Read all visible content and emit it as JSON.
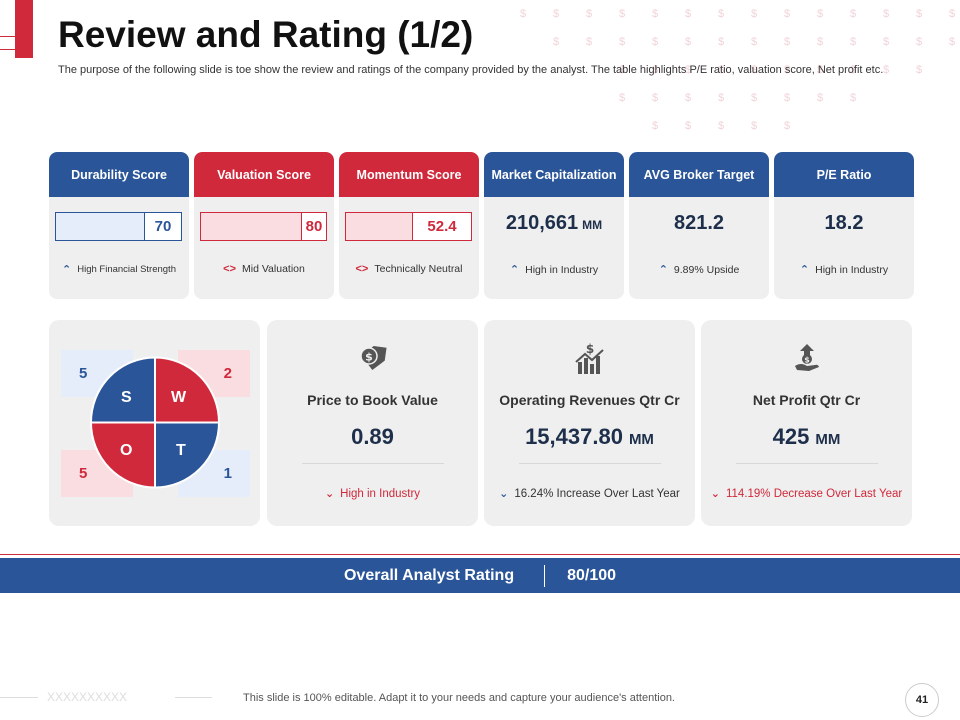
{
  "title": "Review and Rating (1/2)",
  "subtitle": "The purpose of the following slide is toe show the review and ratings of the company provided by the analyst. The table highlights P/E ratio, valuation score, Net profit etc.",
  "metrics": [
    {
      "header": "Durability Score",
      "value": "70",
      "fill_fraction": 0.7,
      "note": "High Financial Strength",
      "icon": "chevron-up-icon"
    },
    {
      "header": "Valuation Score",
      "value": "80",
      "fill_fraction": 0.8,
      "note": "Mid Valuation",
      "icon": "code-brackets-icon"
    },
    {
      "header": "Momentum  Score",
      "value": "52.4",
      "fill_fraction": 0.524,
      "note": "Technically Neutral",
      "icon": "code-brackets-icon"
    },
    {
      "header": "Market Capitalization",
      "value": "210,661",
      "unit": "MM",
      "note": "High in Industry",
      "icon": "chevron-up-icon"
    },
    {
      "header": "AVG Broker Target",
      "value": "821.2",
      "note": "9.89% Upside",
      "icon": "chevron-up-icon"
    },
    {
      "header": "P/E Ratio",
      "value": "18.2",
      "note": "High in Industry",
      "icon": "chevron-up-icon"
    }
  ],
  "swot": {
    "s_label": "S",
    "w_label": "W",
    "o_label": "O",
    "t_label": "T",
    "s_count": "5",
    "w_count": "2",
    "o_count": "5",
    "t_count": "1"
  },
  "cards": [
    {
      "label": "Price to Book Value",
      "value": "0.89",
      "note": "High in Industry",
      "icon": "price-tag-dollar-icon"
    },
    {
      "label": "Operating Revenues Qtr Cr",
      "value": "15,437.80",
      "unit": "MM",
      "note": "16.24% Increase Over Last Year",
      "icon": "revenue-chart-icon"
    },
    {
      "label": "Net Profit Qtr Cr",
      "value": "425",
      "unit": "MM",
      "note": "114.19% Decrease Over Last Year",
      "icon": "hand-money-icon"
    }
  ],
  "rating": {
    "label": "Overall Analyst Rating",
    "value": "80/100"
  },
  "footer": {
    "decor": "XXXXXXXXXX",
    "text": "This slide is 100% editable. Adapt it to your needs and capture your audience's attention.",
    "page_number": "41"
  },
  "colors": {
    "red": "#d0293b",
    "blue": "#2a5599",
    "card_bg": "#efefef"
  }
}
